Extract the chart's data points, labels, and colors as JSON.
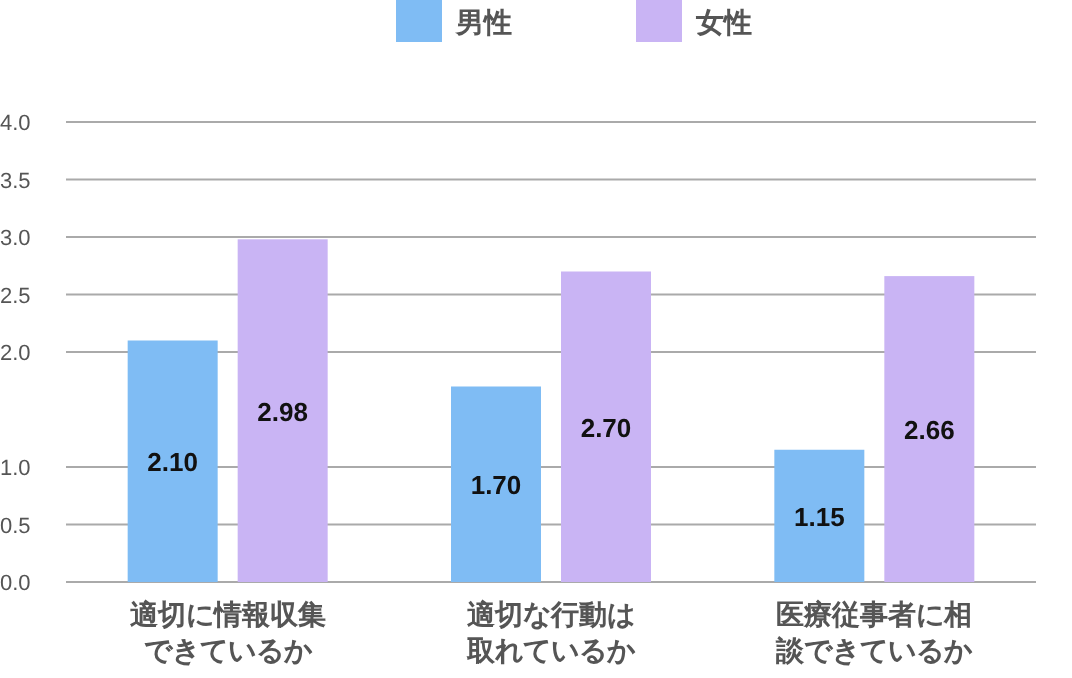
{
  "chart_data": {
    "type": "bar",
    "categories": [
      "適切に情報収集できているか",
      "適切な行動は取れているか",
      "医療従事者に相談できているか"
    ],
    "series": [
      {
        "name": "男性",
        "color": "#7fbcf4",
        "values": [
          2.1,
          1.7,
          1.15
        ],
        "value_labels": [
          "2.10",
          "1.70",
          "1.15"
        ]
      },
      {
        "name": "女性",
        "color": "#c9b4f4",
        "values": [
          2.98,
          2.7,
          2.66
        ],
        "value_labels": [
          "2.98",
          "2.70",
          "2.66"
        ]
      }
    ],
    "ylim": [
      0,
      4
    ],
    "yticks": [
      {
        "value": 0,
        "label": "0.0"
      },
      {
        "value": 0.5,
        "label": "0.5"
      },
      {
        "value": 1,
        "label": "1.0"
      },
      {
        "value": 2,
        "label": "2.0"
      },
      {
        "value": 2.5,
        "label": "2.5"
      },
      {
        "value": 3,
        "label": "3.0"
      },
      {
        "value": 3.5,
        "label": "3.5"
      },
      {
        "value": 4,
        "label": "4.0"
      }
    ],
    "grid": "y",
    "legend": "top"
  }
}
